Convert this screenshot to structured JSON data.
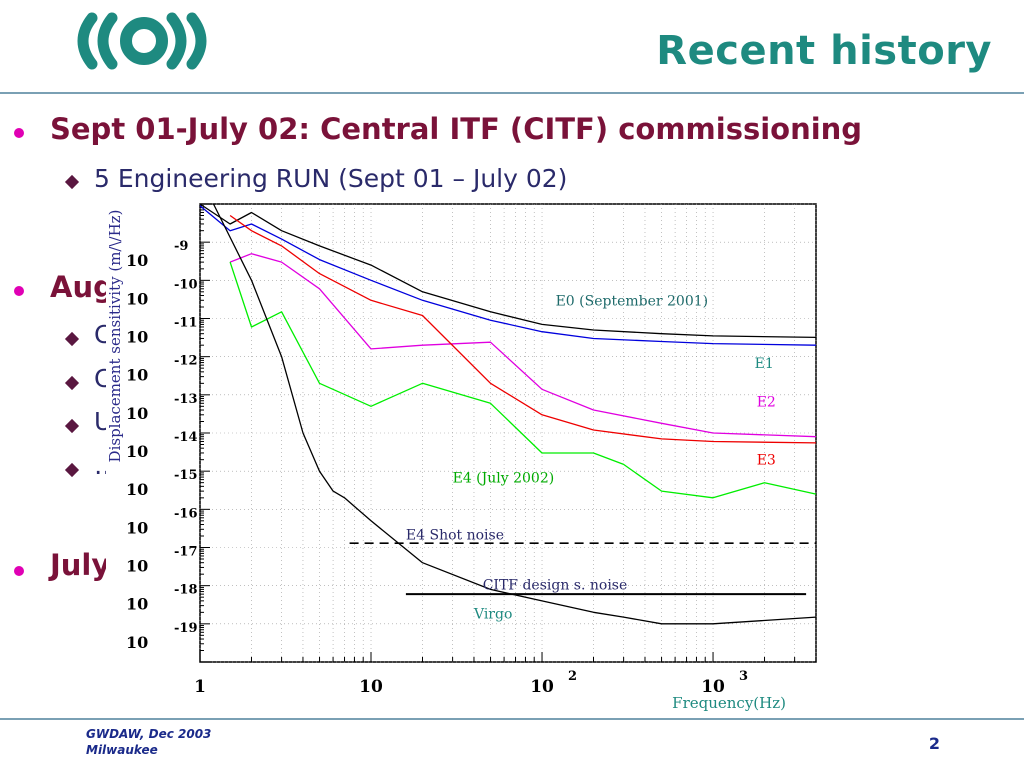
{
  "slide": {
    "title": "Recent history",
    "logo_icon": "virgo-logo-icon",
    "bullets": [
      {
        "text": "Sept 01-July 02: Central ITF (CITF) commissioning",
        "sub": [
          "5 Engineering RUN (Sept 01 – July 02)"
        ]
      },
      {
        "text": "Aug",
        "sub": [
          "C",
          "C",
          "U",
          "…"
        ]
      },
      {
        "text": "July",
        "sub": []
      }
    ],
    "footer": {
      "line1": "GWDAW, Dec 2003",
      "line2": "Milwaukee",
      "page": "2"
    },
    "colors": {
      "title": "#1e8a80",
      "bullet": "#e000b4",
      "bullet_text": "#7a1239",
      "sub_text": "#2a2a6a",
      "rule": "#7aa0b4"
    }
  },
  "chart_data": {
    "type": "line",
    "title": "",
    "xlabel": "Frequency(Hz)",
    "ylabel": "Displacement sensitivity (m/\\/Hz)",
    "xscale": "log",
    "yscale": "log",
    "xlim": [
      1,
      4000
    ],
    "ylim": [
      1e-20,
      1e-08
    ],
    "x_ticks": [
      {
        "value": 1,
        "base": "1",
        "exp": ""
      },
      {
        "value": 10,
        "base": "10",
        "exp": ""
      },
      {
        "value": 100,
        "base": "10",
        "exp": "2"
      },
      {
        "value": 1000,
        "base": "10",
        "exp": "3"
      }
    ],
    "y_ticks": [
      {
        "value": 1e-09,
        "base": "10",
        "exp": "-9"
      },
      {
        "value": 1e-10,
        "base": "10",
        "exp": "-10"
      },
      {
        "value": 1e-11,
        "base": "10",
        "exp": "-11"
      },
      {
        "value": 1e-12,
        "base": "10",
        "exp": "-12"
      },
      {
        "value": 1e-13,
        "base": "10",
        "exp": "-13"
      },
      {
        "value": 1e-14,
        "base": "10",
        "exp": "-14"
      },
      {
        "value": 1e-15,
        "base": "10",
        "exp": "-15"
      },
      {
        "value": 1e-16,
        "base": "10",
        "exp": "-16"
      },
      {
        "value": 1e-17,
        "base": "10",
        "exp": "-17"
      },
      {
        "value": 1e-18,
        "base": "10",
        "exp": "-18"
      },
      {
        "value": 1e-19,
        "base": "10",
        "exp": "-19"
      }
    ],
    "grid": true,
    "series": [
      {
        "name": "E0 (September 2001)",
        "color": "#000000",
        "style": "solid",
        "x": [
          1,
          1.5,
          2,
          3,
          5,
          10,
          20,
          50,
          100,
          200,
          500,
          1000,
          4000
        ],
        "y": [
          1e-08,
          3e-09,
          6e-09,
          2e-09,
          8e-10,
          2.5e-10,
          5e-11,
          1.5e-11,
          7e-12,
          5e-12,
          4e-12,
          3.5e-12,
          3.2e-12
        ]
      },
      {
        "name": "E1",
        "color": "#0000dd",
        "style": "solid",
        "x": [
          1,
          1.5,
          2,
          3,
          5,
          10,
          20,
          50,
          100,
          200,
          500,
          1000,
          4000
        ],
        "y": [
          9e-09,
          2e-09,
          3e-09,
          1.2e-09,
          3.5e-10,
          1e-10,
          3e-11,
          9e-12,
          4.5e-12,
          3e-12,
          2.5e-12,
          2.2e-12,
          2e-12
        ]
      },
      {
        "name": "E2",
        "color": "#e000e0",
        "style": "solid",
        "x": [
          1.5,
          2,
          3,
          5,
          10,
          20,
          50,
          100,
          200,
          500,
          1000,
          4000
        ],
        "y": [
          3e-10,
          5e-10,
          3e-10,
          6e-11,
          1.6e-12,
          2e-12,
          2.4e-12,
          1.4e-13,
          4e-14,
          1.8e-14,
          1e-14,
          8e-15
        ]
      },
      {
        "name": "E3",
        "color": "#ee0000",
        "style": "solid",
        "x": [
          1.5,
          2,
          3,
          5,
          10,
          20,
          50,
          100,
          200,
          500,
          1000,
          4000
        ],
        "y": [
          5e-09,
          2e-09,
          8e-10,
          1.5e-10,
          3e-11,
          1.2e-11,
          2e-13,
          3e-14,
          1.2e-14,
          7e-15,
          6e-15,
          5.5e-15
        ]
      },
      {
        "name": "E4 (July 2002)",
        "color": "#00ee00",
        "style": "solid",
        "x": [
          1.5,
          2,
          3,
          5,
          10,
          20,
          50,
          100,
          200,
          300,
          500,
          1000,
          2000,
          4000
        ],
        "y": [
          3e-10,
          6e-12,
          1.5e-11,
          2e-13,
          5e-14,
          2e-13,
          6e-14,
          3e-15,
          3e-15,
          1.5e-15,
          3e-16,
          2e-16,
          5e-16,
          2.5e-16
        ]
      },
      {
        "name": "E4 Shot noise",
        "color": "#000000",
        "style": "dashed",
        "x": [
          7.5,
          4000
        ],
        "y": [
          1.3e-17,
          1.3e-17
        ]
      },
      {
        "name": "CITF design s. noise",
        "color": "#000000",
        "style": "solid-thick",
        "x": [
          16,
          3500
        ],
        "y": [
          6e-19,
          6e-19
        ]
      },
      {
        "name": "Virgo",
        "color": "#000000",
        "style": "solid",
        "x": [
          1.2,
          2,
          3,
          4,
          5,
          6,
          7,
          10,
          20,
          50,
          100,
          200,
          300,
          500,
          1000,
          4000
        ],
        "y": [
          1e-08,
          1e-10,
          1e-12,
          1e-14,
          1e-15,
          3e-16,
          2e-16,
          5e-17,
          4e-18,
          8e-19,
          4e-19,
          2e-19,
          1.5e-19,
          1e-19,
          1e-19,
          1.5e-19
        ]
      }
    ],
    "annotations": [
      {
        "text": "E0 (September 2001)",
        "color": "#1e6a6a",
        "x": 120,
        "y": 2.2e-11
      },
      {
        "text": "E1",
        "color": "#1e8a80",
        "x": 1750,
        "y": 5e-13
      },
      {
        "text": "E2",
        "color": "#e000e0",
        "x": 1800,
        "y": 5e-14
      },
      {
        "text": "E3",
        "color": "#ee0000",
        "x": 1800,
        "y": 1.5e-15
      },
      {
        "text": "E4 (July 2002)",
        "color": "#00aa00",
        "x": 30,
        "y": 5e-16
      },
      {
        "text": "E4 Shot noise",
        "color": "#2a2a6a",
        "x": 16,
        "y": 1.6e-17
      },
      {
        "text": "CITF design s. noise",
        "color": "#2a2a6a",
        "x": 45,
        "y": 8e-19
      },
      {
        "text": "Virgo",
        "color": "#1e8a80",
        "x": 40,
        "y": 1.4e-19
      }
    ]
  }
}
